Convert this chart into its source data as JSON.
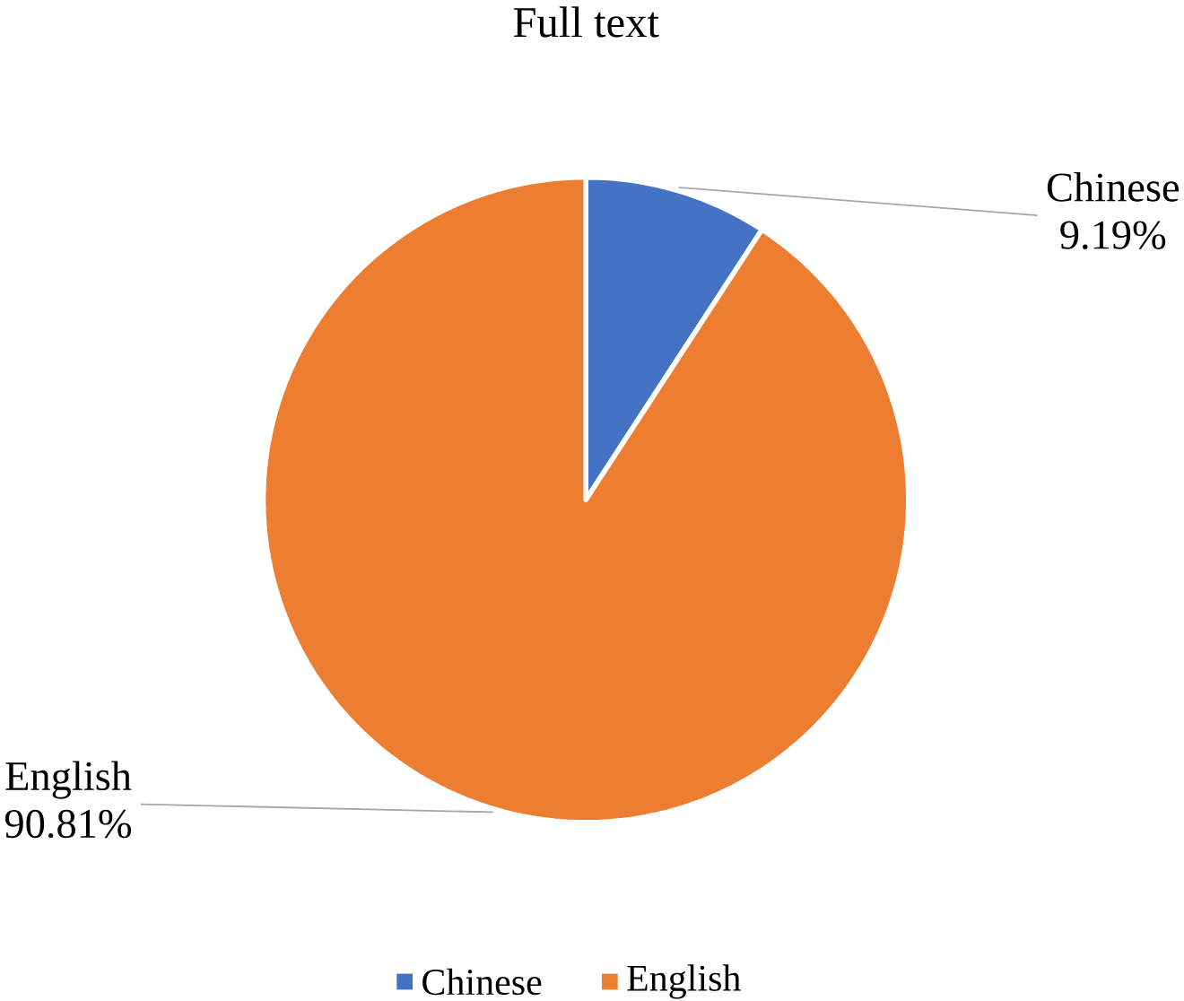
{
  "chart_data": {
    "type": "pie",
    "title": "Full text",
    "categories": [
      "Chinese",
      "English"
    ],
    "values": [
      9.19,
      90.81
    ],
    "value_labels": [
      "9.19%",
      "90.81%"
    ],
    "colors": [
      "#4472c4",
      "#ed7d31"
    ],
    "legend": "bottom"
  }
}
